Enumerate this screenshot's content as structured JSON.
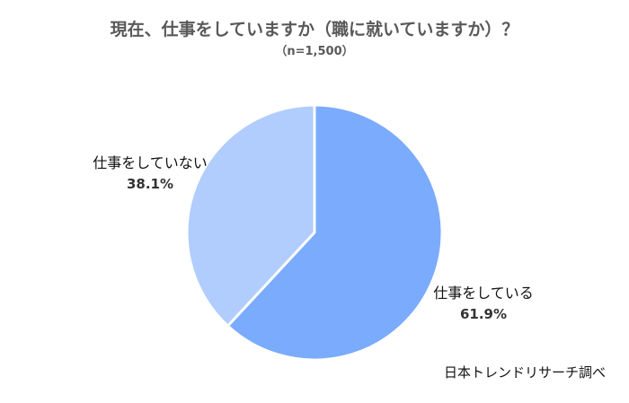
{
  "chart_data": {
    "type": "pie",
    "title": "現在、仕事をしていますか（職に就いていますか）？",
    "subtitle": "（n=1,500）",
    "slices": [
      {
        "label": "仕事をしている",
        "value": 61.9,
        "value_label": "61.9%",
        "color": "#7aabfd"
      },
      {
        "label": "仕事をしていない",
        "value": 38.1,
        "value_label": "38.1%",
        "color": "#b0cdfe"
      }
    ],
    "source": "日本トレンドリサーチ調べ"
  }
}
